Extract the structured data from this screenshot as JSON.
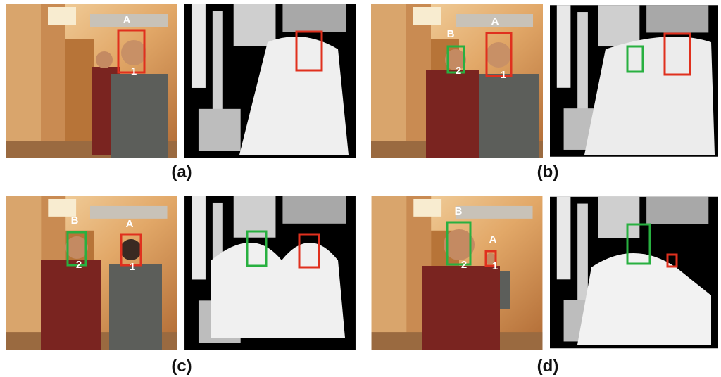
{
  "panels": [
    {
      "caption": "(a)",
      "labels": [
        "A",
        "1"
      ]
    },
    {
      "caption": "(b)",
      "labels": [
        "B",
        "2",
        "A",
        "1"
      ]
    },
    {
      "caption": "(c)",
      "labels": [
        "B",
        "2",
        "A",
        "1"
      ]
    },
    {
      "caption": "(d)",
      "labels": [
        "B",
        "2",
        "A",
        "1"
      ]
    }
  ]
}
